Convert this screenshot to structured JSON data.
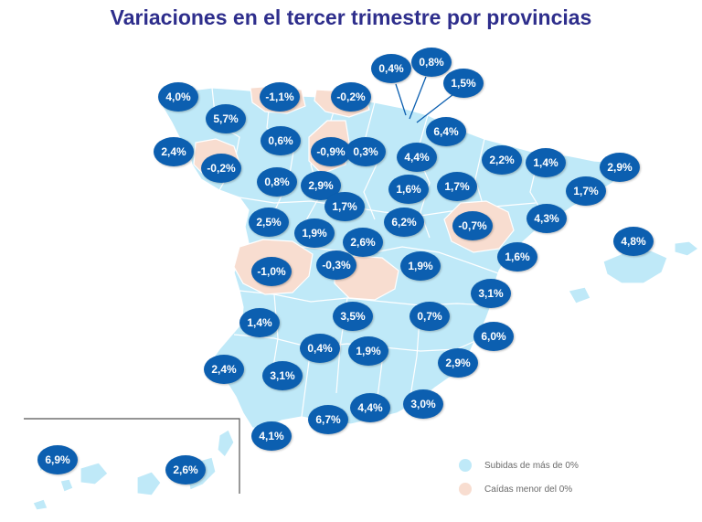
{
  "title": "Variaciones en el tercer trimestre por provincias",
  "colors": {
    "rise": "#bfe9f8",
    "fall": "#f8ddd0",
    "badge": "#0c5fb0",
    "title": "#2e2e8c",
    "border": "#ffffff"
  },
  "legend": {
    "rise_label": "Subidas de más de 0%",
    "fall_label": "Caídas menor del 0%"
  },
  "provinces": [
    {
      "value": "4,0%"
    },
    {
      "value": "-1,1%"
    },
    {
      "value": "-0,2%"
    },
    {
      "value": "0,4%"
    },
    {
      "value": "0,8%"
    },
    {
      "value": "1,5%"
    },
    {
      "value": "5,7%"
    },
    {
      "value": "6,4%"
    },
    {
      "value": "2,4%"
    },
    {
      "value": "0,6%"
    },
    {
      "value": "-0,9%"
    },
    {
      "value": "0,3%"
    },
    {
      "value": "4,4%"
    },
    {
      "value": "2,2%"
    },
    {
      "value": "1,4%"
    },
    {
      "value": "2,9%"
    },
    {
      "value": "-0,2%"
    },
    {
      "value": "0,8%"
    },
    {
      "value": "2,9%"
    },
    {
      "value": "1,6%"
    },
    {
      "value": "1,7%"
    },
    {
      "value": "1,7%"
    },
    {
      "value": "1,7%"
    },
    {
      "value": "4,3%"
    },
    {
      "value": "2,5%"
    },
    {
      "value": "6,2%"
    },
    {
      "value": "-0,7%"
    },
    {
      "value": "1,9%"
    },
    {
      "value": "2,6%"
    },
    {
      "value": "4,8%"
    },
    {
      "value": "-0,3%"
    },
    {
      "value": "1,6%"
    },
    {
      "value": "-1,0%"
    },
    {
      "value": "1,9%"
    },
    {
      "value": "3,1%"
    },
    {
      "value": "3,5%"
    },
    {
      "value": "0,7%"
    },
    {
      "value": "1,4%"
    },
    {
      "value": "6,0%"
    },
    {
      "value": "0,4%"
    },
    {
      "value": "1,9%"
    },
    {
      "value": "2,4%"
    },
    {
      "value": "2,9%"
    },
    {
      "value": "3,1%"
    },
    {
      "value": "3,0%"
    },
    {
      "value": "4,4%"
    },
    {
      "value": "6,7%"
    },
    {
      "value": "4,1%"
    },
    {
      "value": "6,9%"
    },
    {
      "value": "2,6%"
    }
  ]
}
